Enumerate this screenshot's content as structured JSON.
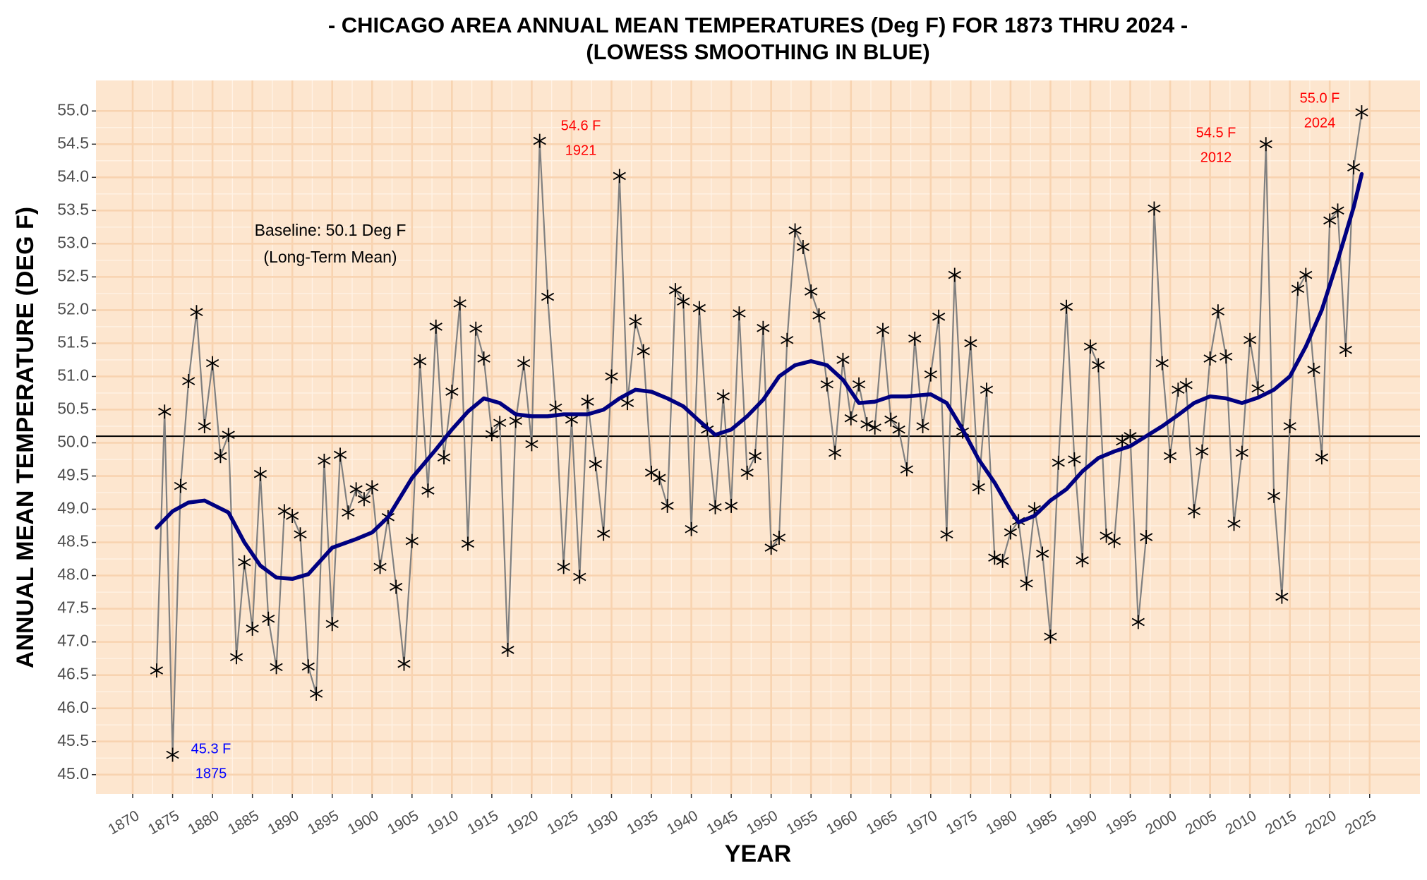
{
  "chart_data": {
    "type": "line",
    "title": "- CHICAGO AREA ANNUAL MEAN TEMPERATURES (Deg F) FOR 1873 THRU 2024 -",
    "subtitle": "(LOWESS SMOOTHING IN BLUE)",
    "x_label": "YEAR",
    "y_label": "ANNUAL MEAN TEMPERATURE (DEG F)",
    "xlim": [
      1865.4,
      2031.3
    ],
    "ylim": [
      44.71,
      55.46
    ],
    "xticks": [
      1870,
      1875,
      1880,
      1885,
      1890,
      1895,
      1900,
      1905,
      1910,
      1915,
      1920,
      1925,
      1930,
      1935,
      1940,
      1945,
      1950,
      1955,
      1960,
      1965,
      1970,
      1975,
      1980,
      1985,
      1990,
      1995,
      2000,
      2005,
      2010,
      2015,
      2020,
      2025
    ],
    "yticks": [
      {
        "value": 45,
        "label": "45.0"
      },
      45.5,
      {
        "value": 46,
        "label": "46.0"
      },
      46.5,
      {
        "value": 47,
        "label": "47.0"
      },
      47.5,
      {
        "value": 48,
        "label": "48.0"
      },
      48.5,
      {
        "value": 49,
        "label": "49.0"
      },
      49.5,
      {
        "value": 50,
        "label": "50.0"
      },
      50.5,
      {
        "value": 51,
        "label": "51.0"
      },
      51.5,
      {
        "value": 52,
        "label": "52.0"
      },
      52.5,
      {
        "value": 53,
        "label": "53.0"
      },
      53.5,
      {
        "value": 54,
        "label": "54.0"
      },
      54.5,
      {
        "value": 55,
        "label": "55.0"
      }
    ],
    "grid": true,
    "baseline": 50.1,
    "baseline_labels": [
      "Baseline: 50.1 Deg F",
      "(Long-Term Mean)"
    ],
    "annotations": [
      {
        "lines": [
          "54.6 F",
          "1921"
        ],
        "color": "#ff0000"
      },
      {
        "lines": [
          "54.5 F",
          "2012"
        ],
        "color": "#ff0000"
      },
      {
        "lines": [
          "55.0 F",
          "2024"
        ],
        "color": "#ff0000"
      },
      {
        "lines": [
          "45.3 F",
          "1875"
        ],
        "color": "#0000ff"
      }
    ],
    "series": [
      {
        "color": "#000000",
        "line_color": "#808080",
        "x": [
          1873,
          1874,
          1875,
          1876,
          1877,
          1878,
          1879,
          1880,
          1881,
          1882,
          1883,
          1884,
          1885,
          1886,
          1887,
          1888,
          1889,
          1890,
          1891,
          1892,
          1893,
          1894,
          1895,
          1896,
          1897,
          1898,
          1899,
          1900,
          1901,
          1902,
          1903,
          1904,
          1905,
          1906,
          1907,
          1908,
          1909,
          1910,
          1911,
          1912,
          1913,
          1914,
          1915,
          1916,
          1917,
          1918,
          1919,
          1920,
          1921,
          1922,
          1923,
          1924,
          1925,
          1926,
          1927,
          1928,
          1929,
          1930,
          1931,
          1932,
          1933,
          1934,
          1935,
          1936,
          1937,
          1938,
          1939,
          1940,
          1941,
          1942,
          1943,
          1944,
          1945,
          1946,
          1947,
          1948,
          1949,
          1950,
          1951,
          1952,
          1953,
          1954,
          1955,
          1956,
          1957,
          1958,
          1959,
          1960,
          1961,
          1962,
          1963,
          1964,
          1965,
          1966,
          1967,
          1968,
          1969,
          1970,
          1971,
          1972,
          1973,
          1974,
          1975,
          1976,
          1977,
          1978,
          1979,
          1980,
          1981,
          1982,
          1983,
          1984,
          1985,
          1986,
          1987,
          1988,
          1989,
          1990,
          1991,
          1992,
          1993,
          1994,
          1995,
          1996,
          1997,
          1998,
          1999,
          2000,
          2001,
          2002,
          2003,
          2004,
          2005,
          2006,
          2007,
          2008,
          2009,
          2010,
          2011,
          2012,
          2013,
          2014,
          2015,
          2016,
          2017,
          2018,
          2019,
          2020,
          2021,
          2022,
          2023,
          2024
        ],
        "values": [
          46.57,
          50.47,
          45.3,
          49.35,
          50.93,
          51.97,
          50.25,
          51.2,
          49.8,
          50.12,
          46.77,
          48.2,
          47.2,
          49.53,
          47.35,
          46.62,
          48.97,
          48.9,
          48.62,
          46.63,
          46.22,
          49.73,
          47.27,
          49.82,
          48.95,
          49.3,
          49.15,
          49.33,
          48.13,
          48.88,
          47.83,
          46.67,
          48.52,
          51.23,
          49.28,
          51.75,
          49.78,
          50.77,
          52.1,
          48.48,
          51.72,
          51.27,
          50.13,
          50.3,
          46.88,
          50.33,
          51.2,
          49.98,
          54.55,
          52.2,
          50.53,
          48.13,
          50.35,
          47.98,
          50.62,
          49.68,
          48.63,
          51.0,
          54.02,
          50.6,
          51.83,
          51.38,
          49.55,
          49.47,
          49.05,
          52.3,
          52.13,
          48.7,
          52.03,
          50.2,
          49.03,
          50.7,
          49.05,
          51.95,
          49.55,
          49.8,
          51.73,
          48.42,
          48.57,
          51.55,
          53.2,
          52.95,
          52.28,
          51.92,
          50.88,
          49.85,
          51.25,
          50.37,
          50.88,
          50.28,
          50.23,
          51.7,
          50.35,
          50.2,
          49.6,
          51.57,
          50.25,
          51.03,
          51.9,
          48.62,
          52.53,
          50.17,
          51.5,
          49.33,
          50.8,
          48.27,
          48.22,
          48.65,
          48.82,
          47.88,
          49.0,
          48.33,
          47.08,
          49.7,
          52.05,
          49.75,
          48.23,
          51.45,
          51.17,
          48.6,
          48.52,
          50.02,
          50.1,
          47.3,
          48.58,
          53.53,
          51.2,
          49.8,
          50.8,
          50.87,
          48.97,
          49.87,
          51.27,
          51.98,
          51.3,
          48.78,
          49.85,
          51.55,
          50.82,
          54.5,
          49.2,
          47.68,
          50.25,
          52.32,
          52.53,
          51.1,
          49.78,
          53.35,
          53.5,
          51.4,
          54.15,
          54.98
        ]
      },
      {
        "color": "#000080",
        "x": [
          1873,
          1875,
          1877,
          1879,
          1882,
          1884,
          1886,
          1888,
          1890,
          1892,
          1895,
          1898,
          1900,
          1902,
          1905,
          1908,
          1910,
          1912,
          1914,
          1916,
          1918,
          1920,
          1922,
          1924,
          1927,
          1929,
          1931,
          1933,
          1935,
          1937,
          1939,
          1941,
          1943,
          1945,
          1947,
          1949,
          1951,
          1953,
          1955,
          1957,
          1959,
          1961,
          1963,
          1965,
          1967,
          1970,
          1972,
          1974,
          1976,
          1978,
          1980,
          1981,
          1983,
          1985,
          1987,
          1989,
          1991,
          1993,
          1995,
          1997,
          1999,
          2001,
          2003,
          2005,
          2007,
          2009,
          2011,
          2013,
          2015,
          2017,
          2019,
          2021,
          2023,
          2024
        ],
        "values": [
          48.72,
          48.97,
          49.1,
          49.13,
          48.95,
          48.5,
          48.15,
          47.97,
          47.95,
          48.02,
          48.42,
          48.55,
          48.65,
          48.88,
          49.47,
          49.9,
          50.2,
          50.47,
          50.67,
          50.6,
          50.43,
          50.4,
          50.4,
          50.43,
          50.43,
          50.5,
          50.67,
          50.8,
          50.77,
          50.67,
          50.55,
          50.33,
          50.12,
          50.2,
          50.4,
          50.65,
          51.0,
          51.17,
          51.23,
          51.17,
          50.95,
          50.6,
          50.62,
          50.7,
          50.7,
          50.73,
          50.6,
          50.2,
          49.75,
          49.4,
          48.98,
          48.8,
          48.9,
          49.13,
          49.3,
          49.57,
          49.77,
          49.87,
          49.95,
          50.1,
          50.25,
          50.42,
          50.6,
          50.7,
          50.67,
          50.6,
          50.68,
          50.8,
          51.0,
          51.45,
          52.0,
          52.75,
          53.55,
          54.05
        ]
      }
    ]
  }
}
